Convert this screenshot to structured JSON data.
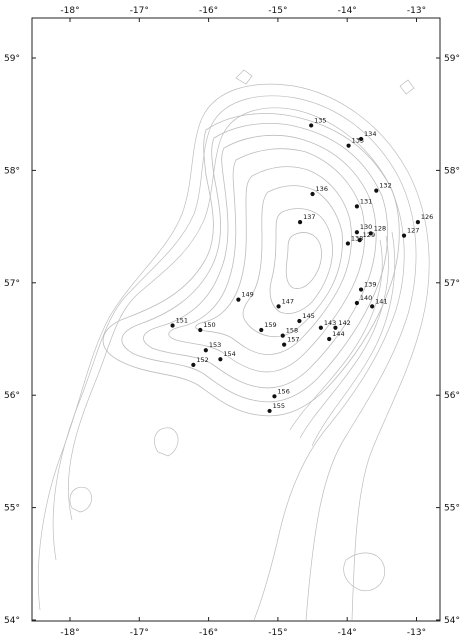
{
  "map": {
    "longitude_ticks": [
      "-18°",
      "-17°",
      "-16°",
      "-15°",
      "-14°",
      "-13°"
    ],
    "latitude_ticks": [
      "59°",
      "58°",
      "57°",
      "56°",
      "55°",
      "54°"
    ],
    "station_color": "#111111",
    "contour_color": "#bdbdbd",
    "stations": [
      {
        "id": "135",
        "lon": -14.52,
        "lat": 58.4
      },
      {
        "id": "134",
        "lon": -13.8,
        "lat": 58.28
      },
      {
        "id": "133",
        "lon": -13.98,
        "lat": 58.22
      },
      {
        "id": "132",
        "lon": -13.58,
        "lat": 57.82
      },
      {
        "id": "136",
        "lon": -14.5,
        "lat": 57.79
      },
      {
        "id": "131",
        "lon": -13.86,
        "lat": 57.68
      },
      {
        "id": "137",
        "lon": -14.68,
        "lat": 57.54
      },
      {
        "id": "126",
        "lon": -12.98,
        "lat": 57.54
      },
      {
        "id": "130",
        "lon": -13.86,
        "lat": 57.45
      },
      {
        "id": "128",
        "lon": -13.66,
        "lat": 57.44
      },
      {
        "id": "127",
        "lon": -13.18,
        "lat": 57.42
      },
      {
        "id": "129",
        "lon": -13.82,
        "lat": 57.38
      },
      {
        "id": "138",
        "lon": -13.99,
        "lat": 57.35
      },
      {
        "id": "139",
        "lon": -13.8,
        "lat": 56.94
      },
      {
        "id": "149",
        "lon": -15.57,
        "lat": 56.85
      },
      {
        "id": "140",
        "lon": -13.86,
        "lat": 56.82
      },
      {
        "id": "141",
        "lon": -13.64,
        "lat": 56.79
      },
      {
        "id": "147",
        "lon": -14.99,
        "lat": 56.79
      },
      {
        "id": "145",
        "lon": -14.69,
        "lat": 56.66
      },
      {
        "id": "151",
        "lon": -16.52,
        "lat": 56.62
      },
      {
        "id": "159",
        "lon": -15.24,
        "lat": 56.58
      },
      {
        "id": "150",
        "lon": -16.12,
        "lat": 56.58
      },
      {
        "id": "143",
        "lon": -14.38,
        "lat": 56.6
      },
      {
        "id": "142",
        "lon": -14.17,
        "lat": 56.6
      },
      {
        "id": "158",
        "lon": -14.93,
        "lat": 56.53
      },
      {
        "id": "144",
        "lon": -14.26,
        "lat": 56.5
      },
      {
        "id": "157",
        "lon": -14.91,
        "lat": 56.45
      },
      {
        "id": "153",
        "lon": -16.04,
        "lat": 56.4
      },
      {
        "id": "154",
        "lon": -15.83,
        "lat": 56.32
      },
      {
        "id": "152",
        "lon": -16.22,
        "lat": 56.27
      },
      {
        "id": "156",
        "lon": -15.05,
        "lat": 55.99
      },
      {
        "id": "155",
        "lon": -15.12,
        "lat": 55.86
      }
    ]
  }
}
